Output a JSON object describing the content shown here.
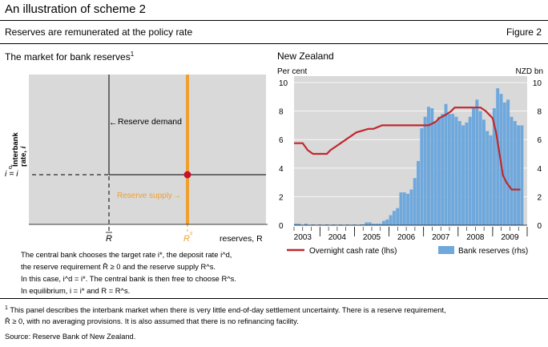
{
  "header": {
    "title": "An illustration of scheme 2",
    "subtitle": "Reserves are remunerated at the policy rate",
    "figure_label": "Figure 2"
  },
  "left_panel": {
    "title": "The market for bank reserves",
    "title_sup": "1",
    "y_axis_label": "Interbank rate, i",
    "y_tick": "i = i",
    "y_tick_sup_d": "d",
    "y_tick_sup_star": "*",
    "x_axis_label": "reserves, R",
    "x_tick_rbar": "R",
    "x_tick_rs": "R",
    "x_tick_rs_sup": "s",
    "reserve_demand_label": "Reserve demand",
    "reserve_supply_label": "Reserve supply",
    "colors": {
      "supply": "#f0a030",
      "supply_text": "#f0a030",
      "equilibrium": "#c8102e",
      "background": "#d9d9d9"
    },
    "description": [
      "The central bank chooses the target rate i*, the deposit rate i^d,",
      "the reserve requirement R̄ ≥ 0 and the reserve supply R^s.",
      "In this case, i^d = i*. The central bank is then free to choose R^s.",
      "In equilibrium, i = i* and R = R^s."
    ]
  },
  "chart_data": {
    "type": "bar",
    "title": "New Zealand",
    "ylabel_left": "Per cent",
    "ylabel_right": "NZD bn",
    "ylim_left": [
      0,
      10
    ],
    "ylim_right": [
      0,
      10
    ],
    "yticks_left": [
      0,
      2,
      4,
      6,
      8,
      10
    ],
    "yticks_right": [
      0,
      2,
      4,
      6,
      8,
      10
    ],
    "xticks": [
      "2003",
      "2004",
      "2005",
      "2006",
      "2007",
      "2008",
      "2009"
    ],
    "x_range": [
      2003.0,
      2009.75
    ],
    "grid": true,
    "legend_position": "bottom",
    "colors": {
      "bars": "#6fa8dc",
      "line": "#c0282d",
      "background": "#d9d9d9"
    },
    "series": [
      {
        "name": "Bank reserves (rhs)",
        "type": "bar",
        "axis": "right",
        "points": [
          [
            2003.0,
            0.1
          ],
          [
            2003.1,
            0.1
          ],
          [
            2003.3,
            0.1
          ],
          [
            2003.5,
            0.05
          ],
          [
            2003.7,
            0.05
          ],
          [
            2003.9,
            0.05
          ],
          [
            2004.1,
            0.05
          ],
          [
            2004.3,
            0.05
          ],
          [
            2004.5,
            0.05
          ],
          [
            2004.7,
            0.05
          ],
          [
            2004.9,
            0.05
          ],
          [
            2005.0,
            0.05
          ],
          [
            2005.05,
            0.2
          ],
          [
            2005.15,
            0.2
          ],
          [
            2005.25,
            0.1
          ],
          [
            2005.35,
            0.1
          ],
          [
            2005.45,
            0.1
          ],
          [
            2005.55,
            0.3
          ],
          [
            2005.65,
            0.4
          ],
          [
            2005.75,
            0.7
          ],
          [
            2005.85,
            1.0
          ],
          [
            2005.95,
            1.2
          ],
          [
            2006.05,
            2.3
          ],
          [
            2006.15,
            2.3
          ],
          [
            2006.25,
            2.2
          ],
          [
            2006.35,
            2.5
          ],
          [
            2006.45,
            3.3
          ],
          [
            2006.55,
            4.5
          ],
          [
            2006.65,
            6.8
          ],
          [
            2006.75,
            7.6
          ],
          [
            2006.85,
            8.3
          ],
          [
            2006.95,
            8.2
          ],
          [
            2007.05,
            7.3
          ],
          [
            2007.15,
            7.6
          ],
          [
            2007.25,
            7.8
          ],
          [
            2007.35,
            8.5
          ],
          [
            2007.45,
            7.8
          ],
          [
            2007.55,
            7.8
          ],
          [
            2007.65,
            7.6
          ],
          [
            2007.75,
            7.3
          ],
          [
            2007.85,
            7.0
          ],
          [
            2007.95,
            7.2
          ],
          [
            2008.05,
            7.6
          ],
          [
            2008.15,
            8.2
          ],
          [
            2008.25,
            8.8
          ],
          [
            2008.35,
            8.0
          ],
          [
            2008.45,
            7.4
          ],
          [
            2008.55,
            6.6
          ],
          [
            2008.65,
            6.3
          ],
          [
            2008.75,
            8.2
          ],
          [
            2008.85,
            9.6
          ],
          [
            2008.95,
            9.2
          ],
          [
            2009.05,
            8.6
          ],
          [
            2009.15,
            8.8
          ],
          [
            2009.25,
            7.6
          ],
          [
            2009.35,
            7.3
          ],
          [
            2009.45,
            7.0
          ],
          [
            2009.55,
            7.0
          ]
        ]
      },
      {
        "name": "Overnight cash rate (lhs)",
        "type": "line",
        "axis": "left",
        "points": [
          [
            2003.0,
            5.75
          ],
          [
            2003.25,
            5.75
          ],
          [
            2003.4,
            5.25
          ],
          [
            2003.55,
            5.0
          ],
          [
            2003.95,
            5.0
          ],
          [
            2004.05,
            5.25
          ],
          [
            2004.2,
            5.5
          ],
          [
            2004.35,
            5.75
          ],
          [
            2004.5,
            6.0
          ],
          [
            2004.65,
            6.25
          ],
          [
            2004.8,
            6.5
          ],
          [
            2005.15,
            6.75
          ],
          [
            2005.3,
            6.75
          ],
          [
            2005.55,
            7.0
          ],
          [
            2006.9,
            7.0
          ],
          [
            2007.1,
            7.25
          ],
          [
            2007.2,
            7.5
          ],
          [
            2007.4,
            7.75
          ],
          [
            2007.55,
            8.0
          ],
          [
            2007.65,
            8.25
          ],
          [
            2008.4,
            8.25
          ],
          [
            2008.55,
            8.0
          ],
          [
            2008.75,
            7.5
          ],
          [
            2008.85,
            6.5
          ],
          [
            2008.95,
            5.0
          ],
          [
            2009.05,
            3.5
          ],
          [
            2009.15,
            3.0
          ],
          [
            2009.3,
            2.5
          ],
          [
            2009.55,
            2.5
          ]
        ]
      }
    ]
  },
  "footnote": {
    "marker": "1",
    "text_1": "This panel describes the interbank market when there is very little end-of-day settlement uncertainty. There is a reserve requirement,",
    "text_2": "R̄ ≥ 0, with no averaging provisions. It is also assumed that there is no refinancing facility."
  },
  "source": "Source: Reserve Bank of New Zealand."
}
